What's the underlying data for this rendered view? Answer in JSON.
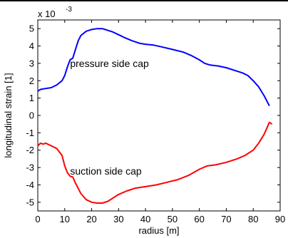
{
  "chart_data": {
    "type": "line",
    "title": "",
    "xlabel": "radius [m]",
    "ylabel": "longitudinal strain [1]",
    "y_multiplier_label": "x 10",
    "y_multiplier_exponent": "-3",
    "xlim": [
      0,
      90
    ],
    "ylim": [
      -5.5,
      5.5
    ],
    "xticks": [
      0,
      10,
      20,
      30,
      40,
      50,
      60,
      70,
      80,
      90
    ],
    "yticks": [
      -5,
      -4,
      -3,
      -2,
      -1,
      0,
      1,
      2,
      3,
      4,
      5
    ],
    "grid": false,
    "legend": "none",
    "annotations": [
      {
        "text": "pressure side cap",
        "x": 12,
        "y": 3.0
      },
      {
        "text": "suction side cap",
        "x": 12,
        "y": -3.2
      }
    ],
    "series": [
      {
        "color": "#0000ff",
        "x": [
          0,
          1,
          3,
          5,
          7,
          9,
          10,
          11,
          12,
          13,
          14,
          15,
          16,
          18,
          20,
          22,
          24,
          26,
          28,
          30,
          32,
          35,
          38,
          40,
          43,
          46,
          50,
          54,
          57,
          60,
          62,
          64,
          67,
          70,
          73,
          76,
          78,
          80,
          82,
          84,
          86
        ],
        "y": [
          1.4,
          1.5,
          1.55,
          1.6,
          1.75,
          2.0,
          2.3,
          2.8,
          3.2,
          3.3,
          3.8,
          4.3,
          4.6,
          4.85,
          4.95,
          5.0,
          5.0,
          4.9,
          4.8,
          4.65,
          4.5,
          4.3,
          4.15,
          4.1,
          4.05,
          3.95,
          3.8,
          3.65,
          3.45,
          3.2,
          3.0,
          2.9,
          2.85,
          2.75,
          2.6,
          2.45,
          2.3,
          2.0,
          1.65,
          1.15,
          0.55
        ]
      },
      {
        "color": "#ff0000",
        "x": [
          0,
          1,
          2,
          3,
          5,
          7,
          9,
          10,
          11,
          12,
          13,
          14,
          15,
          16,
          18,
          20,
          22,
          24,
          26,
          28,
          30,
          33,
          36,
          40,
          44,
          48,
          52,
          56,
          60,
          63,
          66,
          70,
          74,
          77,
          80,
          82,
          84,
          85,
          86,
          87
        ],
        "y": [
          -1.75,
          -1.6,
          -1.65,
          -1.6,
          -1.75,
          -1.9,
          -2.3,
          -2.9,
          -3.3,
          -3.5,
          -3.55,
          -3.9,
          -4.2,
          -4.5,
          -4.85,
          -5.0,
          -5.05,
          -5.05,
          -4.95,
          -4.75,
          -4.55,
          -4.35,
          -4.2,
          -4.1,
          -4.0,
          -3.85,
          -3.7,
          -3.45,
          -3.1,
          -2.9,
          -2.85,
          -2.7,
          -2.5,
          -2.3,
          -2.0,
          -1.6,
          -1.1,
          -0.75,
          -0.4,
          -0.5
        ]
      }
    ]
  }
}
